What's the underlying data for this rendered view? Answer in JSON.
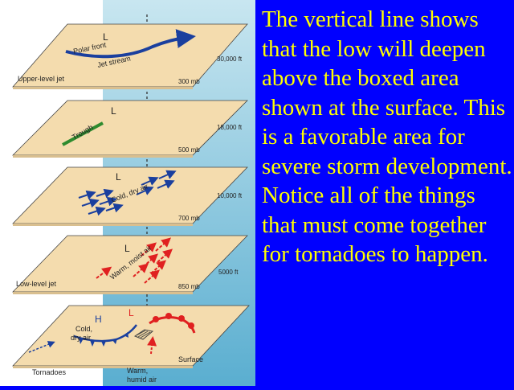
{
  "caption": "The vertical line shows that the low will deepen above the boxed area shown at the surface. This is a favorable area for severe storm development. Notice all of the things that must come together for tornadoes to happen.",
  "colors": {
    "background": "#0000ff",
    "caption_text": "#ffff00",
    "sky_top": "#bfe0ec",
    "sky_bottom": "#4aa4c8",
    "layer_plane": "#f4dcae",
    "jet_stream": "#1a3f9e",
    "trough": "#2e8b2e",
    "cold_air": "#1a3f9e",
    "warm_air": "#e02020"
  },
  "layers": {
    "upper": {
      "low_label": "L",
      "side_label": "Upper-level jet",
      "altitude": "30,000 ft",
      "pressure": "300 mb",
      "jet_label_1": "Polar front",
      "jet_label_2": "Jet stream"
    },
    "trough_level": {
      "low_label": "L",
      "trough_label": "Trough",
      "altitude": "18,000 ft",
      "pressure": "500 mb"
    },
    "cold_level": {
      "low_label": "L",
      "air_label": "Cold, dry air",
      "altitude": "10,000 ft",
      "pressure": "700 mb"
    },
    "warm_level": {
      "low_label": "L",
      "side_label": "Low-level jet",
      "air_label": "Warm, moist air",
      "altitude": "5000 ft",
      "pressure": "850 mb"
    },
    "surface": {
      "high_label": "H",
      "low_label": "L",
      "cold_label_1": "Cold,",
      "cold_label_2": "dry air",
      "side_label": "Tornadoes",
      "warm_label_1": "Warm,",
      "warm_label_2": "humid air",
      "level_label": "Surface"
    }
  }
}
